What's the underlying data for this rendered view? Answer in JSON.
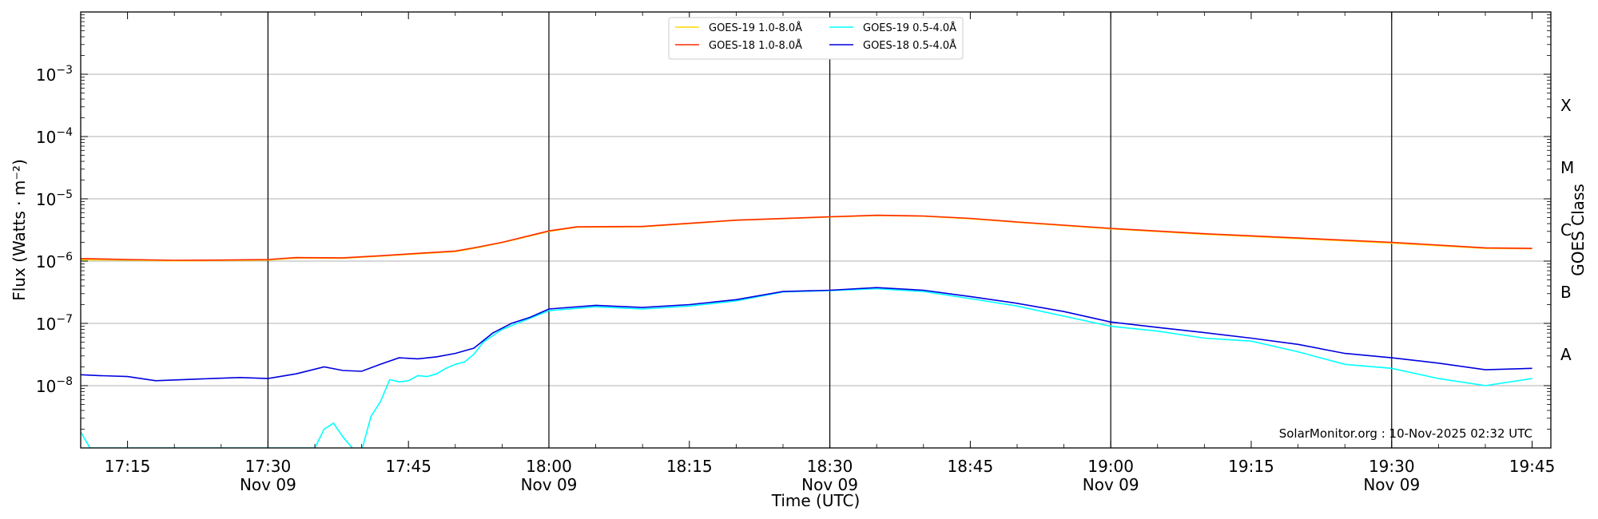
{
  "chart_data": {
    "type": "line",
    "title": "",
    "xlabel": "Time (UTC)",
    "ylabel": "Flux (Watts · m⁻²)",
    "y2label": "GOES Class",
    "yscale": "log",
    "ylim": [
      1e-09,
      0.01
    ],
    "xlim": [
      "17:10",
      "19:47"
    ],
    "grid": "horizontal",
    "legend_position": "top-center",
    "credit": "SolarMonitor.org : 10-Nov-2025 02:32 UTC",
    "y_ticks": [
      {
        "value": 1e-08,
        "base": "10",
        "exp": "−8"
      },
      {
        "value": 1e-07,
        "base": "10",
        "exp": "−7"
      },
      {
        "value": 1e-06,
        "base": "10",
        "exp": "−6"
      },
      {
        "value": 1e-05,
        "base": "10",
        "exp": "−5"
      },
      {
        "value": 0.0001,
        "base": "10",
        "exp": "−4"
      },
      {
        "value": 0.001,
        "base": "10",
        "exp": "−3"
      }
    ],
    "x_ticks": [
      {
        "t": "17:15",
        "label": "17:15",
        "date": ""
      },
      {
        "t": "17:30",
        "label": "17:30",
        "date": "Nov 09"
      },
      {
        "t": "17:45",
        "label": "17:45",
        "date": ""
      },
      {
        "t": "18:00",
        "label": "18:00",
        "date": "Nov 09"
      },
      {
        "t": "18:15",
        "label": "18:15",
        "date": ""
      },
      {
        "t": "18:30",
        "label": "18:30",
        "date": "Nov 09"
      },
      {
        "t": "18:45",
        "label": "18:45",
        "date": ""
      },
      {
        "t": "19:00",
        "label": "19:00",
        "date": "Nov 09"
      },
      {
        "t": "19:15",
        "label": "19:15",
        "date": ""
      },
      {
        "t": "19:30",
        "label": "19:30",
        "date": "Nov 09"
      },
      {
        "t": "19:45",
        "label": "19:45",
        "date": ""
      }
    ],
    "vlines": [
      "17:30",
      "18:00",
      "18:30",
      "19:00",
      "19:30"
    ],
    "classes": [
      {
        "label": "A",
        "value": 3.16e-08
      },
      {
        "label": "B",
        "value": 3.16e-07
      },
      {
        "label": "C",
        "value": 3.16e-06
      },
      {
        "label": "M",
        "value": 3.16e-05
      },
      {
        "label": "X",
        "value": 0.000316
      }
    ],
    "series": [
      {
        "name": "GOES-19 1.0-8.0Å",
        "color": "#ffd700",
        "x": [
          "17:10",
          "17:15",
          "17:20",
          "17:25",
          "17:30",
          "17:33",
          "17:38",
          "17:42",
          "17:45",
          "17:50",
          "17:52",
          "17:55",
          "18:00",
          "18:03",
          "18:10",
          "18:20",
          "18:30",
          "18:35",
          "18:40",
          "18:45",
          "18:50",
          "19:00",
          "19:10",
          "19:20",
          "19:30",
          "19:40",
          "19:45"
        ],
        "values": [
          1.05e-06,
          1.04e-06,
          1.01e-06,
          1.02e-06,
          1.04e-06,
          1.12e-06,
          1.11e-06,
          1.2e-06,
          1.28e-06,
          1.42e-06,
          1.6e-06,
          1.98e-06,
          3e-06,
          3.5e-06,
          3.55e-06,
          4.5e-06,
          5.1e-06,
          5.4e-06,
          5.25e-06,
          4.8e-06,
          4.2e-06,
          3.3e-06,
          2.7e-06,
          2.3e-06,
          1.95e-06,
          1.6e-06,
          1.58e-06
        ]
      },
      {
        "name": "GOES-18 1.0-8.0Å",
        "color": "#ff2a00",
        "x": [
          "17:10",
          "17:15",
          "17:20",
          "17:25",
          "17:30",
          "17:33",
          "17:38",
          "17:42",
          "17:45",
          "17:50",
          "17:52",
          "17:55",
          "18:00",
          "18:03",
          "18:10",
          "18:20",
          "18:30",
          "18:35",
          "18:40",
          "18:45",
          "18:50",
          "19:00",
          "19:10",
          "19:20",
          "19:30",
          "19:40",
          "19:45"
        ],
        "values": [
          1.1e-06,
          1.06e-06,
          1.03e-06,
          1.04e-06,
          1.06e-06,
          1.14e-06,
          1.13e-06,
          1.22e-06,
          1.3e-06,
          1.45e-06,
          1.63e-06,
          2e-06,
          3.05e-06,
          3.55e-06,
          3.6e-06,
          4.55e-06,
          5.15e-06,
          5.45e-06,
          5.3e-06,
          4.85e-06,
          4.25e-06,
          3.35e-06,
          2.75e-06,
          2.35e-06,
          2e-06,
          1.63e-06,
          1.6e-06
        ]
      },
      {
        "name": "GOES-19 0.5-4.0Å",
        "color": "#00ffff",
        "x": [
          "17:10",
          "17:11",
          "17:30",
          "17:35",
          "17:36",
          "17:37",
          "17:38",
          "17:39",
          "17:40",
          "17:41",
          "17:42",
          "17:43",
          "17:44",
          "17:45",
          "17:46",
          "17:47",
          "17:48",
          "17:49",
          "17:50",
          "17:51",
          "17:52",
          "17:53",
          "17:55",
          "17:57",
          "18:00",
          "18:05",
          "18:10",
          "18:15",
          "18:20",
          "18:25",
          "18:30",
          "18:35",
          "18:40",
          "18:45",
          "18:50",
          "19:00",
          "19:05",
          "19:10",
          "19:15",
          "19:20",
          "19:25",
          "19:30",
          "19:35",
          "19:40",
          "19:45"
        ],
        "values": [
          1.8e-09,
          1e-09,
          1e-09,
          1e-09,
          2e-09,
          2.5e-09,
          1.5e-09,
          1e-09,
          9e-10,
          3.2e-09,
          5.5e-09,
          1.25e-08,
          1.15e-08,
          1.2e-08,
          1.45e-08,
          1.4e-08,
          1.55e-08,
          1.9e-08,
          2.2e-08,
          2.4e-08,
          3.2e-08,
          5e-08,
          8e-08,
          1.05e-07,
          1.6e-07,
          1.85e-07,
          1.7e-07,
          1.9e-07,
          2.3e-07,
          3.2e-07,
          3.35e-07,
          3.6e-07,
          3.25e-07,
          2.5e-07,
          1.9e-07,
          9e-08,
          7.5e-08,
          5.8e-08,
          5.2e-08,
          3.5e-08,
          2.2e-08,
          1.9e-08,
          1.3e-08,
          1e-08,
          1.3e-08
        ]
      },
      {
        "name": "GOES-18 0.5-4.0Å",
        "color": "#0000e0",
        "x": [
          "17:10",
          "17:12",
          "17:15",
          "17:18",
          "17:21",
          "17:24",
          "17:27",
          "17:30",
          "17:33",
          "17:36",
          "17:38",
          "17:40",
          "17:42",
          "17:44",
          "17:46",
          "17:48",
          "17:50",
          "17:52",
          "17:54",
          "17:56",
          "17:58",
          "18:00",
          "18:05",
          "18:10",
          "18:15",
          "18:20",
          "18:25",
          "18:30",
          "18:35",
          "18:40",
          "18:45",
          "18:50",
          "18:55",
          "19:00",
          "19:05",
          "19:10",
          "19:15",
          "19:20",
          "19:25",
          "19:30",
          "19:35",
          "19:40",
          "19:45"
        ],
        "values": [
          1.5e-08,
          1.45e-08,
          1.4e-08,
          1.2e-08,
          1.25e-08,
          1.3e-08,
          1.35e-08,
          1.3e-08,
          1.55e-08,
          2e-08,
          1.75e-08,
          1.7e-08,
          2.2e-08,
          2.8e-08,
          2.7e-08,
          2.9e-08,
          3.3e-08,
          4e-08,
          7e-08,
          1e-07,
          1.25e-07,
          1.7e-07,
          1.95e-07,
          1.8e-07,
          2e-07,
          2.4e-07,
          3.25e-07,
          3.4e-07,
          3.75e-07,
          3.4e-07,
          2.7e-07,
          2.1e-07,
          1.55e-07,
          1.05e-07,
          8.6e-08,
          7.1e-08,
          5.8e-08,
          4.6e-08,
          3.3e-08,
          2.8e-08,
          2.3e-08,
          1.8e-08,
          1.9e-08
        ]
      }
    ]
  }
}
